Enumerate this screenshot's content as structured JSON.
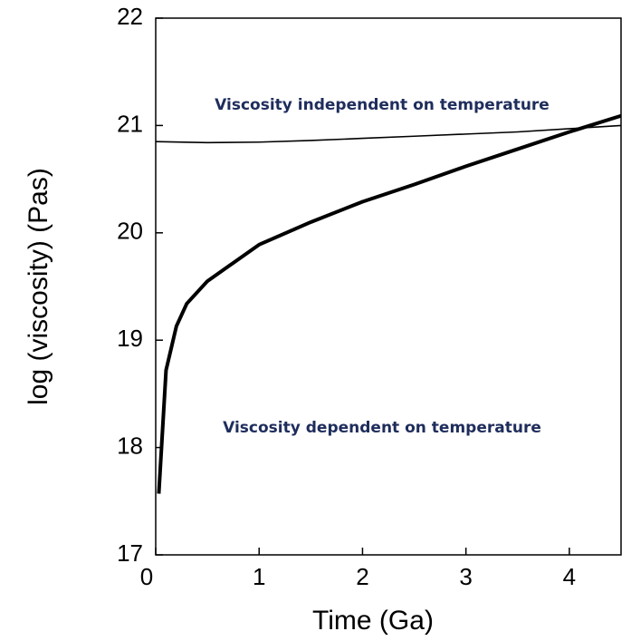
{
  "chart_data": {
    "type": "line",
    "xlabel": "Time (Ga)",
    "ylabel": "log (viscosity) (Pas)",
    "annotations": [
      "Viscosity independent on temperature",
      "Viscosity dependent on temperature"
    ],
    "series": [
      {
        "name": "Viscosity independent on temperature",
        "color": "#000000",
        "x": [
          0,
          0.5,
          1,
          1.5,
          2,
          2.5,
          3,
          3.5,
          4,
          4.5
        ],
        "values": [
          20.85,
          20.84,
          20.845,
          20.86,
          20.88,
          20.9,
          20.92,
          20.94,
          20.97,
          21.0
        ]
      },
      {
        "name": "Viscosity dependent on temperature",
        "color": "#000000",
        "x": [
          0.03,
          0.1,
          0.2,
          0.3,
          0.5,
          0.75,
          1,
          1.5,
          2,
          2.5,
          3,
          3.5,
          4,
          4.5
        ],
        "values": [
          17.57,
          18.72,
          19.13,
          19.34,
          19.55,
          19.72,
          19.89,
          20.1,
          20.29,
          20.45,
          20.62,
          20.78,
          20.94,
          21.09
        ]
      }
    ],
    "xlim": [
      0,
      4.5
    ],
    "xticks": [
      0,
      1,
      2,
      3,
      4
    ],
    "ylim": [
      17,
      22
    ],
    "yticks": [
      17,
      18,
      19,
      20,
      21,
      22
    ]
  }
}
